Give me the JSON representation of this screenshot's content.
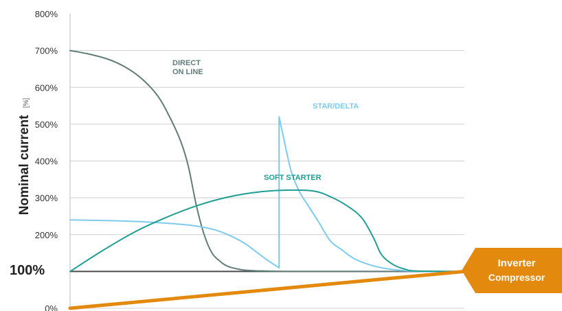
{
  "chart_data": {
    "type": "line",
    "title": "",
    "ylabel": "Nominal current",
    "ylabel_unit": "[%]",
    "xlabel": "",
    "ylim": [
      0,
      800
    ],
    "xlim": [
      0,
      100
    ],
    "yticks": [
      "0%",
      "100%",
      "200%",
      "300%",
      "400%",
      "500%",
      "600%",
      "700%",
      "800%"
    ],
    "grid": true,
    "reference_line": {
      "value": 100,
      "label": "100%"
    },
    "series": [
      {
        "name": "DIRECT ON LINE",
        "color": "#617d79",
        "points": [
          [
            0,
            700
          ],
          [
            5,
            690
          ],
          [
            10,
            675
          ],
          [
            14,
            655
          ],
          [
            18,
            625
          ],
          [
            22,
            580
          ],
          [
            25,
            525
          ],
          [
            28,
            455
          ],
          [
            30,
            385
          ],
          [
            32,
            280
          ],
          [
            34,
            200
          ],
          [
            36,
            150
          ],
          [
            38,
            128
          ],
          [
            40,
            114
          ],
          [
            44,
            104
          ],
          [
            50,
            101
          ],
          [
            60,
            100
          ],
          [
            100,
            100
          ]
        ]
      },
      {
        "name": "STAR/DELTA",
        "color": "#7ccbef",
        "points": [
          [
            0,
            240
          ],
          [
            10,
            238
          ],
          [
            20,
            234
          ],
          [
            30,
            226
          ],
          [
            36,
            215
          ],
          [
            40,
            200
          ],
          [
            44,
            178
          ],
          [
            47,
            155
          ],
          [
            50,
            131
          ],
          [
            53,
            110
          ],
          [
            53,
            520
          ],
          [
            54,
            470
          ],
          [
            56,
            375
          ],
          [
            58,
            320
          ],
          [
            60,
            285
          ],
          [
            63,
            235
          ],
          [
            66,
            183
          ],
          [
            69,
            158
          ],
          [
            72,
            135
          ],
          [
            76,
            118
          ],
          [
            80,
            108
          ],
          [
            85,
            102
          ],
          [
            90,
            100
          ],
          [
            100,
            100
          ]
        ]
      },
      {
        "name": "SOFT STARTER",
        "color": "#1e9e93",
        "points": [
          [
            0,
            100
          ],
          [
            8,
            155
          ],
          [
            16,
            205
          ],
          [
            24,
            245
          ],
          [
            32,
            278
          ],
          [
            40,
            302
          ],
          [
            48,
            316
          ],
          [
            56,
            321
          ],
          [
            62,
            318
          ],
          [
            66,
            303
          ],
          [
            70,
            280
          ],
          [
            74,
            245
          ],
          [
            77,
            190
          ],
          [
            79,
            145
          ],
          [
            82,
            118
          ],
          [
            85,
            106
          ],
          [
            88,
            101
          ],
          [
            100,
            100
          ]
        ]
      },
      {
        "name": "Inverter Compressor",
        "color": "#e3890e",
        "points": [
          [
            0,
            0
          ],
          [
            100,
            100
          ]
        ]
      }
    ],
    "annotations": [
      {
        "series": "DIRECT ON LINE",
        "lines": [
          "DIRECT",
          "ON LINE"
        ]
      },
      {
        "series": "STAR/DELTA",
        "lines": [
          "STAR/DELTA"
        ]
      },
      {
        "series": "SOFT STARTER",
        "lines": [
          "SOFT STARTER"
        ]
      },
      {
        "series": "Inverter Compressor",
        "lines": [
          "Inverter",
          "Compressor"
        ]
      }
    ]
  }
}
